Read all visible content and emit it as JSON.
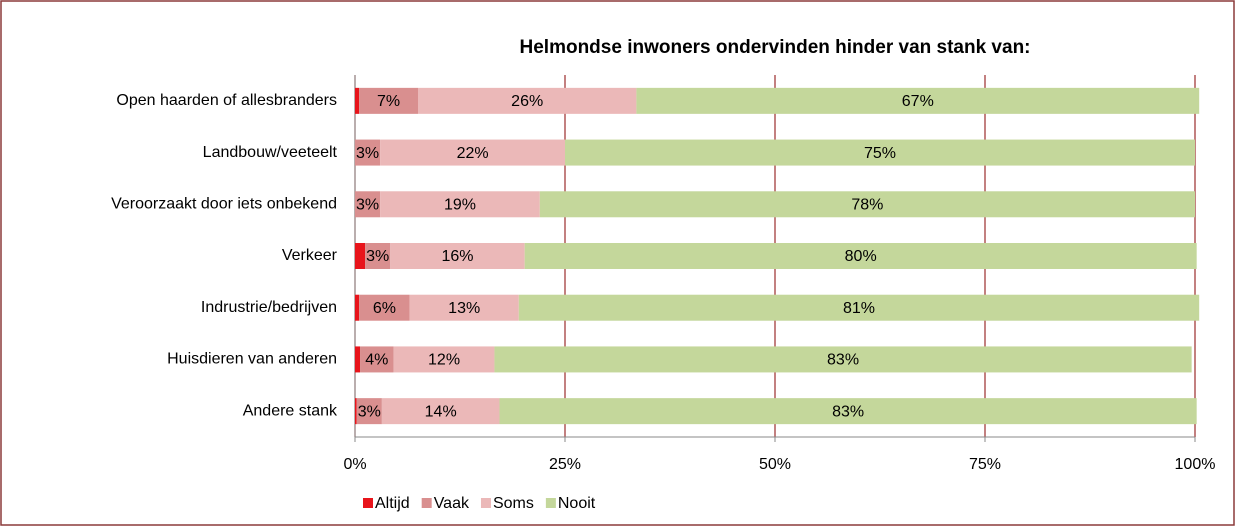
{
  "chart_data": {
    "type": "stacked-bar-horizontal",
    "title": "Helmondse inwoners ondervinden hinder van stank van:",
    "categories": [
      "Open haarden of allesbranders",
      "Landbouw/veeteelt",
      "Veroorzaakt door iets onbekend",
      "Verkeer",
      "Indrustrie/bedrijven",
      "Huisdieren van anderen",
      "Andere stank"
    ],
    "series": [
      {
        "name": "Altijd",
        "color": "#e8141b",
        "values": [
          0.5,
          0,
          0,
          1.2,
          0.5,
          0.6,
          0.2
        ]
      },
      {
        "name": "Vaak",
        "color": "#d98f8f",
        "values": [
          7,
          3,
          3,
          3,
          6,
          4,
          3
        ],
        "value_labels": [
          "7%",
          "3%",
          "3%",
          "3%",
          "6%",
          "4%",
          "3%"
        ]
      },
      {
        "name": "Soms",
        "color": "#ebb8b8",
        "values": [
          26,
          22,
          19,
          16,
          13,
          12,
          14
        ],
        "value_labels": [
          "26%",
          "22%",
          "19%",
          "16%",
          "13%",
          "12%",
          "14%"
        ]
      },
      {
        "name": "Nooit",
        "color": "#c4d79b",
        "values": [
          67,
          75,
          78,
          80,
          81,
          83,
          83
        ],
        "value_labels": [
          "67%",
          "75%",
          "78%",
          "80%",
          "81%",
          "83%",
          "83%"
        ]
      }
    ],
    "xlim": [
      0,
      100
    ],
    "xticks": [
      {
        "value": 0,
        "label": "0%"
      },
      {
        "value": 25,
        "label": "25%"
      },
      {
        "value": 50,
        "label": "50%"
      },
      {
        "value": 75,
        "label": "75%"
      },
      {
        "value": 100,
        "label": "100%"
      }
    ],
    "grid": true,
    "legend": "bottom"
  }
}
